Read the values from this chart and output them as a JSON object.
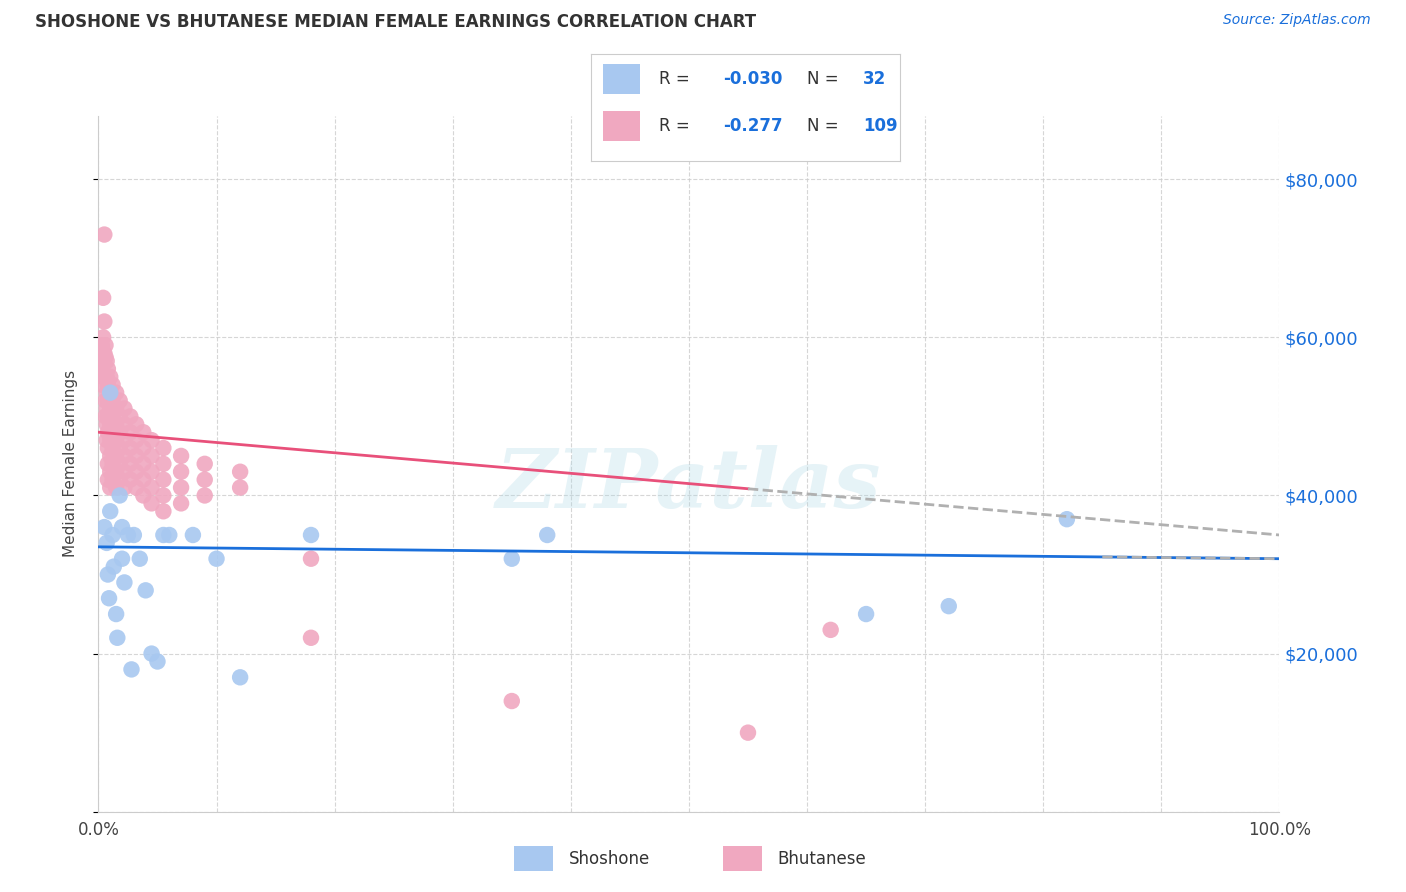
{
  "title": "SHOSHONE VS BHUTANESE MEDIAN FEMALE EARNINGS CORRELATION CHART",
  "source": "Source: ZipAtlas.com",
  "ylabel": "Median Female Earnings",
  "xlim": [
    0.0,
    1.0
  ],
  "ylim": [
    0,
    88000
  ],
  "shoshone_R": -0.03,
  "shoshone_N": 32,
  "bhutanese_R": -0.277,
  "bhutanese_N": 109,
  "shoshone_color": "#a8c8f0",
  "bhutanese_color": "#f0a8c0",
  "shoshone_line_color": "#1a6fdb",
  "bhutanese_line_color": "#e8507a",
  "trend_line_dashed_color": "#b0b0b0",
  "watermark": "ZIPatlas",
  "background_color": "#ffffff",
  "legend_color_blue": "#1a6fdb",
  "legend_color_text": "#333333",
  "shoshone_points_x": [
    0.005,
    0.007,
    0.008,
    0.009,
    0.01,
    0.01,
    0.012,
    0.013,
    0.015,
    0.016,
    0.018,
    0.02,
    0.02,
    0.022,
    0.025,
    0.028,
    0.03,
    0.035,
    0.04,
    0.045,
    0.05,
    0.055,
    0.06,
    0.08,
    0.1,
    0.12,
    0.18,
    0.35,
    0.38,
    0.65,
    0.72,
    0.82
  ],
  "shoshone_points_y": [
    36000,
    34000,
    30000,
    27000,
    38000,
    53000,
    35000,
    31000,
    25000,
    22000,
    40000,
    32000,
    36000,
    29000,
    35000,
    18000,
    35000,
    32000,
    28000,
    20000,
    19000,
    35000,
    35000,
    35000,
    32000,
    17000,
    35000,
    32000,
    35000,
    25000,
    26000,
    37000
  ],
  "bhutanese_points_x": [
    0.003,
    0.003,
    0.003,
    0.003,
    0.003,
    0.003,
    0.003,
    0.003,
    0.004,
    0.004,
    0.004,
    0.004,
    0.004,
    0.005,
    0.005,
    0.005,
    0.005,
    0.006,
    0.006,
    0.006,
    0.006,
    0.006,
    0.007,
    0.007,
    0.007,
    0.007,
    0.007,
    0.007,
    0.008,
    0.008,
    0.008,
    0.008,
    0.008,
    0.008,
    0.008,
    0.008,
    0.01,
    0.01,
    0.01,
    0.01,
    0.01,
    0.01,
    0.01,
    0.01,
    0.012,
    0.012,
    0.012,
    0.012,
    0.012,
    0.012,
    0.012,
    0.015,
    0.015,
    0.015,
    0.015,
    0.015,
    0.015,
    0.015,
    0.018,
    0.018,
    0.018,
    0.018,
    0.018,
    0.018,
    0.022,
    0.022,
    0.022,
    0.022,
    0.022,
    0.022,
    0.027,
    0.027,
    0.027,
    0.027,
    0.027,
    0.032,
    0.032,
    0.032,
    0.032,
    0.032,
    0.038,
    0.038,
    0.038,
    0.038,
    0.038,
    0.045,
    0.045,
    0.045,
    0.045,
    0.045,
    0.055,
    0.055,
    0.055,
    0.055,
    0.055,
    0.07,
    0.07,
    0.07,
    0.07,
    0.09,
    0.09,
    0.09,
    0.12,
    0.12,
    0.18,
    0.18,
    0.35,
    0.55,
    0.62
  ],
  "bhutanese_points_y": [
    59000,
    58000,
    57500,
    57000,
    56500,
    56000,
    55500,
    54000,
    65000,
    60000,
    58000,
    56500,
    55000,
    73000,
    62000,
    58000,
    55000,
    59000,
    57500,
    55000,
    52000,
    50000,
    57000,
    55000,
    53000,
    51000,
    49000,
    47000,
    56000,
    54000,
    52000,
    50000,
    48000,
    46000,
    44000,
    42000,
    55000,
    53000,
    51000,
    49000,
    47000,
    45000,
    43000,
    41000,
    54000,
    52000,
    50000,
    48000,
    46000,
    44000,
    42000,
    53000,
    51000,
    49000,
    47000,
    45000,
    43000,
    41000,
    52000,
    50000,
    48000,
    46000,
    44000,
    42000,
    51000,
    49000,
    47000,
    45000,
    43000,
    41000,
    50000,
    48000,
    46000,
    44000,
    42000,
    49000,
    47000,
    45000,
    43000,
    41000,
    48000,
    46000,
    44000,
    42000,
    40000,
    47000,
    45000,
    43000,
    41000,
    39000,
    46000,
    44000,
    42000,
    40000,
    38000,
    45000,
    43000,
    41000,
    39000,
    44000,
    42000,
    40000,
    43000,
    41000,
    32000,
    22000,
    14000,
    10000,
    23000
  ]
}
